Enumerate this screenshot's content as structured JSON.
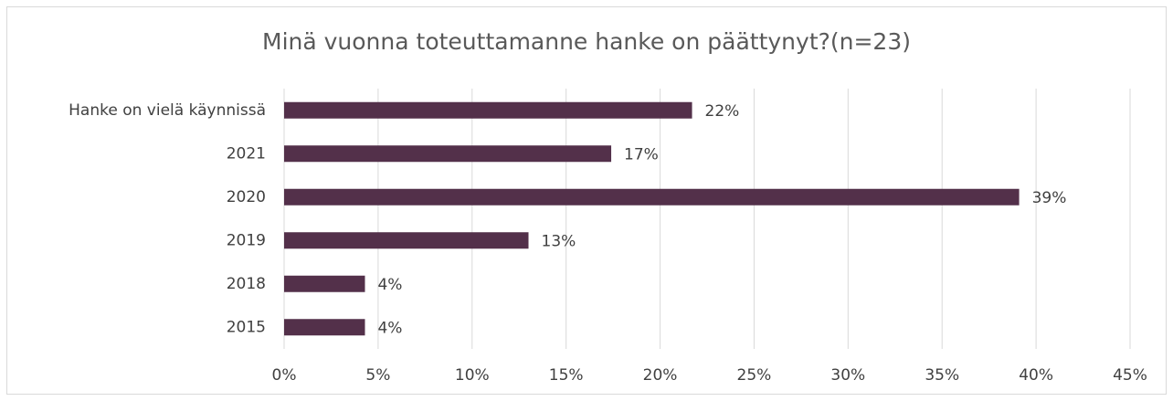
{
  "chart_data": {
    "type": "bar",
    "orientation": "horizontal",
    "title": "Minä vuonna toteuttamanne hanke on päättynyt?(n=23)",
    "categories": [
      "Hanke on vielä käynnissä",
      "2021",
      "2020",
      "2019",
      "2018",
      "2015"
    ],
    "values": [
      21.7,
      17.4,
      39.1,
      13.0,
      4.3,
      4.3
    ],
    "value_labels": [
      "22%",
      "17%",
      "39%",
      "13%",
      "4%",
      "4%"
    ],
    "color": "#53304a",
    "xlim": [
      0,
      45
    ],
    "xticks": [
      {
        "value": 0,
        "label": "0%"
      },
      {
        "value": 5,
        "label": "5%"
      },
      {
        "value": 10,
        "label": "10%"
      },
      {
        "value": 15,
        "label": "15%"
      },
      {
        "value": 20,
        "label": "20%"
      },
      {
        "value": 25,
        "label": "25%"
      },
      {
        "value": 30,
        "label": "30%"
      },
      {
        "value": 35,
        "label": "35%"
      },
      {
        "value": 40,
        "label": "40%"
      },
      {
        "value": 45,
        "label": "45%"
      }
    ],
    "grid": true
  }
}
